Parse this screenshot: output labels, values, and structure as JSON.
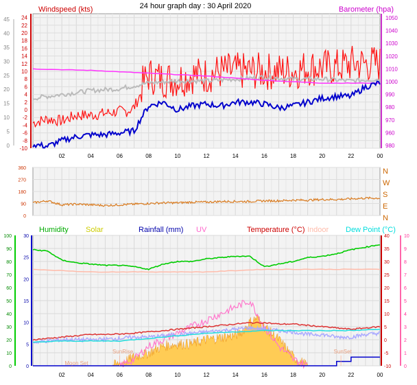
{
  "title": "24 hour graph day : 30 April 2020",
  "chart_data": [
    {
      "type": "line",
      "name": "wind-baro",
      "left_axis_label": "Windspeed (kts)",
      "right_axis_label": "Barometer (hpa)",
      "x_ticks": [
        "02",
        "04",
        "06",
        "08",
        "10",
        "12",
        "14",
        "16",
        "18",
        "20",
        "22",
        "00"
      ],
      "x_range_hours": [
        0,
        24
      ],
      "outer_left_ticks": [
        "0",
        "5",
        "10",
        "15",
        "20",
        "25",
        "30",
        "35",
        "40",
        "45"
      ],
      "wind_ticks": [
        "-10",
        "-8",
        "-6",
        "-4",
        "-2",
        "0",
        "2",
        "4",
        "6",
        "8",
        "10",
        "12",
        "14",
        "16",
        "18",
        "20",
        "22",
        "24"
      ],
      "wind_ylim": [
        -10,
        25
      ],
      "baro_ticks": [
        "980",
        "960",
        "970",
        "980",
        "990",
        "1000",
        "1010",
        "1020",
        "1030",
        "1040",
        "1050"
      ],
      "baro_ylim": [
        955,
        1050
      ],
      "series": [
        {
          "name": "barometer",
          "color": "#ff33ff",
          "x": [
            0,
            2,
            4,
            6,
            8,
            10,
            12,
            14,
            16,
            18,
            20,
            22,
            24
          ],
          "y": [
            1011,
            1010.5,
            1010,
            1009,
            1008,
            1007,
            1006,
            1004.5,
            1003,
            1002,
            1001,
            1001,
            1001
          ]
        },
        {
          "name": "gust",
          "color": "#ff0000",
          "x": [
            0,
            1,
            2,
            3,
            4,
            5,
            6,
            6.5,
            7,
            7.5,
            8,
            9,
            10,
            11,
            12,
            13,
            14,
            15,
            16,
            17,
            18,
            19,
            20,
            21,
            22,
            23,
            24
          ],
          "y": [
            -4,
            -3,
            -3.5,
            -2,
            -2,
            -1.5,
            -1,
            -1,
            0,
            4,
            7,
            6,
            6,
            7,
            7,
            8,
            8,
            8,
            8,
            8,
            8,
            9,
            9,
            9,
            10,
            10,
            10
          ]
        },
        {
          "name": "average",
          "color": "#bbbbbb",
          "x": [
            0,
            2,
            4,
            6,
            8,
            10,
            12,
            14,
            16,
            18,
            20,
            22,
            24
          ],
          "y": [
            3,
            4,
            5,
            5.5,
            7,
            7.5,
            7.5,
            8,
            8.5,
            8,
            8,
            7.5,
            8
          ]
        },
        {
          "name": "wind",
          "color": "#0000cc",
          "x": [
            0,
            1,
            2,
            3,
            4,
            5,
            6,
            7,
            7.5,
            8,
            9,
            10,
            11,
            12,
            13,
            14,
            15,
            16,
            17,
            18,
            19,
            20,
            21,
            22,
            23,
            24
          ],
          "y": [
            -9,
            -9.5,
            -8,
            -7,
            -6.5,
            -6.5,
            -6,
            -5.5,
            -2,
            1,
            2,
            0,
            1,
            1.5,
            1,
            2,
            2,
            1.5,
            0.5,
            1,
            2,
            3,
            3.5,
            3.5,
            6,
            7
          ]
        }
      ]
    },
    {
      "type": "line",
      "name": "wind-direction",
      "left_ticks": [
        "0",
        "90",
        "180",
        "270",
        "360"
      ],
      "right_labels": [
        "N",
        "W",
        "S",
        "E",
        "N"
      ],
      "ylim": [
        0,
        360
      ],
      "series": [
        {
          "name": "direction",
          "color": "#d97b1f",
          "x": [
            0,
            1,
            2,
            3,
            4,
            5,
            6,
            7,
            8,
            9,
            10,
            11,
            12,
            13,
            14,
            15,
            16,
            17,
            18,
            19,
            20,
            21,
            22,
            23,
            24
          ],
          "y": [
            95,
            110,
            80,
            85,
            80,
            75,
            80,
            85,
            90,
            95,
            95,
            100,
            100,
            105,
            105,
            105,
            110,
            110,
            115,
            115,
            120,
            120,
            125,
            130,
            130
          ]
        }
      ]
    },
    {
      "type": "area",
      "name": "temp-humidity-solar-rain",
      "legend": [
        {
          "label": "Humidity",
          "color": "#00aa00"
        },
        {
          "label": "Solar",
          "color": "#cccc00"
        },
        {
          "label": "Rainfall (mm)",
          "color": "#0000aa"
        },
        {
          "label": "UV",
          "color": "#ff66cc"
        },
        {
          "label": "Temperature (°C)",
          "color": "#cc0000"
        },
        {
          "label": "Indoor",
          "color": "#ffbbaa"
        },
        {
          "label": "Dew Point (°C)",
          "color": "#00dddd"
        }
      ],
      "x_ticks": [
        "02",
        "04",
        "06",
        "08",
        "10",
        "12",
        "14",
        "16",
        "18",
        "20",
        "22",
        "00"
      ],
      "humidity_ticks": [
        "0",
        "10",
        "20",
        "30",
        "40",
        "50",
        "60",
        "70",
        "80",
        "90",
        "100"
      ],
      "rain_ticks": [
        "0",
        "5",
        "10",
        "15",
        "20",
        "25",
        "30"
      ],
      "temp_ticks": [
        "-10",
        "-5",
        "0",
        "5",
        "10",
        "15",
        "20",
        "25",
        "30",
        "35",
        "40"
      ],
      "uv_ticks": [
        "0",
        "1",
        "2",
        "3",
        "4",
        "5",
        "6",
        "7",
        "8",
        "9",
        "10"
      ],
      "annotations": [
        "Moon Set",
        "SunRise",
        "SunSet"
      ],
      "series": [
        {
          "name": "humidity",
          "color": "#00cc00",
          "ylim": [
            0,
            100
          ],
          "x": [
            0,
            1,
            2,
            3,
            4,
            5,
            6,
            7,
            8,
            9,
            10,
            11,
            12,
            13,
            14,
            15,
            16,
            17,
            18,
            19,
            20,
            21,
            22,
            23,
            24
          ],
          "y": [
            89,
            88,
            81,
            79,
            78,
            77,
            77,
            76,
            74,
            78,
            80,
            80,
            82,
            83,
            84,
            84,
            76,
            78,
            80,
            83,
            84,
            86,
            89,
            91,
            93
          ]
        },
        {
          "name": "indoor",
          "color": "#ffbbaa",
          "ylim": [
            -10,
            40
          ],
          "x": [
            0,
            2,
            4,
            6,
            8,
            10,
            12,
            14,
            16,
            18,
            20,
            22,
            24
          ],
          "y": [
            27,
            26.5,
            26,
            26,
            26,
            26,
            26,
            26.5,
            27,
            27,
            27,
            27,
            27
          ]
        },
        {
          "name": "temperature",
          "color": "#cc3333",
          "ylim": [
            -10,
            40
          ],
          "x": [
            0,
            1,
            2,
            3,
            4,
            5,
            6,
            7,
            8,
            9,
            10,
            11,
            12,
            13,
            14,
            15,
            16,
            17,
            18,
            19,
            20,
            21,
            22,
            23,
            24
          ],
          "y": [
            0,
            0.5,
            1,
            1.5,
            2,
            2,
            2.2,
            2.5,
            3,
            3.5,
            4,
            4.5,
            5,
            5.5,
            6,
            6.5,
            6.5,
            6,
            6,
            5.5,
            5,
            4.5,
            4,
            4.5,
            5
          ]
        },
        {
          "name": "apparent",
          "color": "#aaaaff",
          "ylim": [
            -10,
            40
          ],
          "x": [
            0,
            1,
            2,
            3,
            4,
            5,
            6,
            7,
            8,
            9,
            10,
            11,
            12,
            13,
            14,
            15,
            16,
            17,
            18,
            19,
            20,
            21,
            22,
            23,
            24
          ],
          "y": [
            -1,
            -0.5,
            0,
            0,
            0,
            0.2,
            0.5,
            1,
            1,
            1.5,
            2,
            2.5,
            3,
            3.5,
            4,
            4.5,
            4,
            3.5,
            3,
            2,
            2,
            1,
            1,
            2,
            2.5
          ]
        },
        {
          "name": "dewpoint",
          "color": "#22dddd",
          "ylim": [
            -10,
            40
          ],
          "x": [
            0,
            2,
            4,
            6,
            8,
            10,
            12,
            14,
            16,
            18,
            20,
            22,
            24
          ],
          "y": [
            -1,
            -0.5,
            -0.5,
            -0.5,
            0.5,
            1.5,
            2.5,
            3,
            3.5,
            3.5,
            3.5,
            3.5,
            4
          ]
        },
        {
          "name": "solar",
          "color": "#ffbb33",
          "ylim": [
            0,
            30
          ],
          "x": [
            5.5,
            6,
            7,
            8,
            9,
            10,
            11,
            12,
            13,
            14,
            14.5,
            15,
            15.5,
            16,
            17,
            17.5,
            18,
            18.5,
            19
          ],
          "y": [
            0,
            0.5,
            2,
            3,
            4.5,
            5,
            5,
            6,
            6.5,
            7,
            8,
            10,
            11,
            9,
            6,
            4,
            2,
            1,
            0
          ]
        },
        {
          "name": "uv",
          "color": "#ff66cc",
          "ylim": [
            0,
            10
          ],
          "x": [
            6,
            7,
            8,
            9,
            10,
            11,
            12,
            13,
            14,
            15,
            15.5,
            16,
            17,
            18,
            19
          ],
          "y": [
            0,
            0.5,
            1.5,
            2,
            2.5,
            3,
            3.5,
            4,
            4.5,
            5,
            4,
            3,
            1.5,
            0.5,
            0
          ]
        },
        {
          "name": "rainfall",
          "color": "#0000cc",
          "ylim": [
            0,
            30
          ],
          "x": [
            0,
            20.5,
            21,
            22,
            23,
            24
          ],
          "y": [
            0,
            0,
            1,
            2,
            2,
            2
          ]
        }
      ]
    }
  ]
}
